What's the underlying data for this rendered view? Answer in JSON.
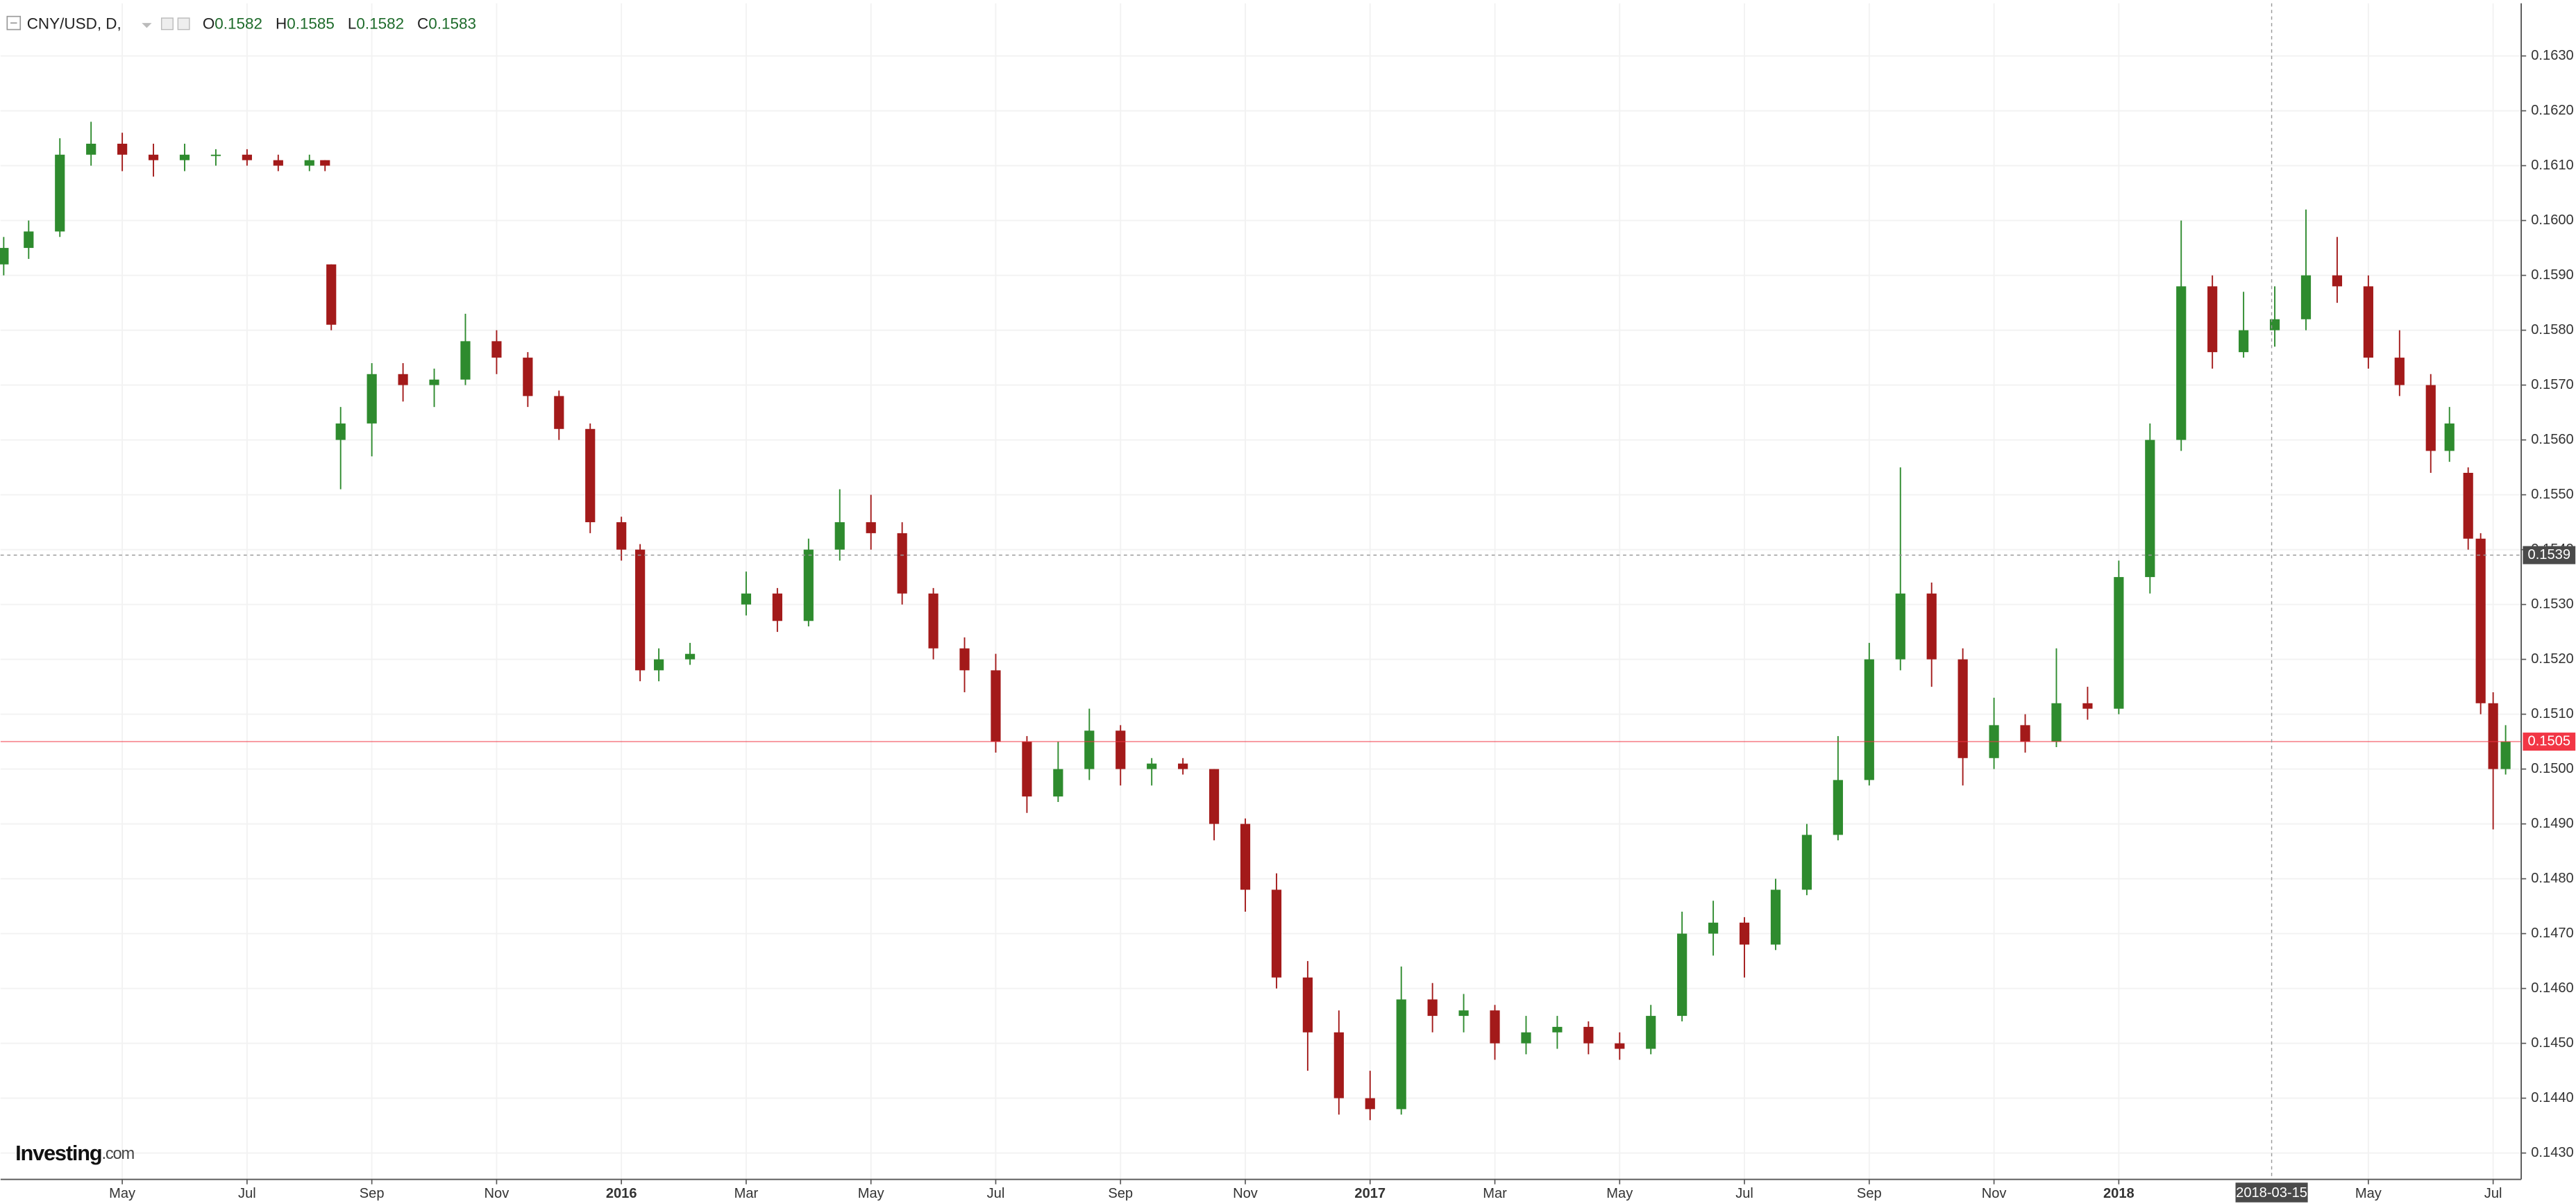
{
  "chart_data": {
    "type": "candlestick",
    "title": "CNY/USD, D,",
    "ohlc_header": [
      {
        "key": "O",
        "value": 0.1582
      },
      {
        "key": "H",
        "value": 0.1585
      },
      {
        "key": "L",
        "value": 0.1582
      },
      {
        "key": "C",
        "value": 0.1583
      }
    ],
    "brand": "Investing",
    "brand_suffix": ".com",
    "up_color": "#2e8b2e",
    "down_color": "#a31a1a",
    "grid": true,
    "xlim": [
      2.05,
      42.45
    ],
    "ylim": [
      0.14252,
      0.16396
    ],
    "xticks": [
      {
        "value": 4,
        "label": "May"
      },
      {
        "value": 6,
        "label": "Jul"
      },
      {
        "value": 8,
        "label": "Sep"
      },
      {
        "value": 10,
        "label": "Nov"
      },
      {
        "value": 12,
        "label": "2016"
      },
      {
        "value": 14,
        "label": "Mar"
      },
      {
        "value": 16,
        "label": "May"
      },
      {
        "value": 18,
        "label": "Jul"
      },
      {
        "value": 20,
        "label": "Sep"
      },
      {
        "value": 22,
        "label": "Nov"
      },
      {
        "value": 24,
        "label": "2017"
      },
      {
        "value": 26,
        "label": "Mar"
      },
      {
        "value": 28,
        "label": "May"
      },
      {
        "value": 30,
        "label": "Jul"
      },
      {
        "value": 32,
        "label": "Sep"
      },
      {
        "value": 34,
        "label": "Nov"
      },
      {
        "value": 36,
        "label": "2018"
      },
      {
        "value": 40,
        "label": "May"
      },
      {
        "value": 42,
        "label": "Jul"
      }
    ],
    "yticks": [
      {
        "value": 0.143,
        "label": "0.1430"
      },
      {
        "value": 0.144,
        "label": "0.1440"
      },
      {
        "value": 0.145,
        "label": "0.1450"
      },
      {
        "value": 0.146,
        "label": "0.1460"
      },
      {
        "value": 0.147,
        "label": "0.1470"
      },
      {
        "value": 0.148,
        "label": "0.1480"
      },
      {
        "value": 0.149,
        "label": "0.1490"
      },
      {
        "value": 0.15,
        "label": "0.1500"
      },
      {
        "value": 0.151,
        "label": "0.1510"
      },
      {
        "value": 0.152,
        "label": "0.1520"
      },
      {
        "value": 0.153,
        "label": "0.1530"
      },
      {
        "value": 0.154,
        "label": "0.1540"
      },
      {
        "value": 0.155,
        "label": "0.1550"
      },
      {
        "value": 0.156,
        "label": "0.1560"
      },
      {
        "value": 0.157,
        "label": "0.1570"
      },
      {
        "value": 0.158,
        "label": "0.1580"
      },
      {
        "value": 0.159,
        "label": "0.1590"
      },
      {
        "value": 0.16,
        "label": "0.1600"
      },
      {
        "value": 0.161,
        "label": "0.1610"
      },
      {
        "value": 0.162,
        "label": "0.1620"
      },
      {
        "value": 0.163,
        "label": "0.1630"
      }
    ],
    "crosshair": {
      "x": {
        "value": 38.45,
        "label": "2018-03-15"
      },
      "y": 0.1539
    },
    "current_price": 0.1505,
    "current_price_color": "#f23645",
    "series": {
      "x": [
        2.1,
        2.5,
        3.0,
        3.5,
        4.0,
        4.5,
        5.0,
        5.5,
        6.0,
        6.5,
        7.0,
        7.25,
        7.35,
        7.5,
        8.0,
        8.5,
        9.0,
        9.5,
        10.0,
        10.5,
        11.0,
        11.5,
        12.0,
        12.3,
        12.6,
        13.1,
        14.0,
        14.5,
        15.0,
        15.5,
        16.0,
        16.5,
        17.0,
        17.5,
        18.0,
        18.5,
        19.0,
        19.5,
        20.0,
        20.5,
        21.0,
        21.5,
        22.0,
        22.5,
        23.0,
        23.5,
        24.0,
        24.5,
        25.0,
        25.5,
        26.0,
        26.5,
        27.0,
        27.5,
        28.0,
        28.5,
        29.0,
        29.5,
        30.0,
        30.5,
        31.0,
        31.5,
        32.0,
        32.5,
        33.0,
        33.5,
        34.0,
        34.5,
        35.0,
        35.5,
        36.0,
        36.5,
        37.0,
        37.5,
        38.0,
        38.5,
        39.0,
        39.5,
        40.0,
        40.5,
        41.0,
        41.3,
        41.6,
        41.8,
        42.0,
        42.2
      ],
      "open": [
        0.1592,
        0.1595,
        0.1598,
        0.1612,
        0.1614,
        0.1612,
        0.1611,
        0.1612,
        0.1612,
        0.1611,
        0.161,
        0.1611,
        0.1592,
        0.156,
        0.1563,
        0.1572,
        0.157,
        0.1571,
        0.1578,
        0.1575,
        0.1568,
        0.1562,
        0.1545,
        0.154,
        0.1518,
        0.152,
        0.153,
        0.1532,
        0.1527,
        0.154,
        0.1545,
        0.1543,
        0.1532,
        0.1522,
        0.1518,
        0.1505,
        0.1495,
        0.15,
        0.1507,
        0.15,
        0.1501,
        0.15,
        0.149,
        0.1478,
        0.1462,
        0.1452,
        0.144,
        0.1438,
        0.1458,
        0.1455,
        0.1456,
        0.145,
        0.1452,
        0.1453,
        0.145,
        0.1449,
        0.1455,
        0.147,
        0.1472,
        0.1468,
        0.1478,
        0.1488,
        0.1498,
        0.152,
        0.1532,
        0.152,
        0.1502,
        0.1508,
        0.1505,
        0.1512,
        0.1511,
        0.1535,
        0.156,
        0.1588,
        0.1576,
        0.158,
        0.1582,
        0.159,
        0.1588,
        0.1575,
        0.157,
        0.1558,
        0.1554,
        0.1542,
        0.1512,
        0.15
      ],
      "high": [
        0.1597,
        0.16,
        0.1615,
        0.1618,
        0.1616,
        0.1614,
        0.1614,
        0.1613,
        0.1613,
        0.1612,
        0.1612,
        0.1611,
        0.1592,
        0.1566,
        0.1574,
        0.1574,
        0.1573,
        0.1583,
        0.158,
        0.1576,
        0.1569,
        0.1563,
        0.1546,
        0.1541,
        0.1522,
        0.1523,
        0.1536,
        0.1533,
        0.1542,
        0.1551,
        0.155,
        0.1545,
        0.1533,
        0.1524,
        0.1521,
        0.1506,
        0.1505,
        0.1511,
        0.1508,
        0.1502,
        0.1502,
        0.15,
        0.1491,
        0.1481,
        0.1465,
        0.1456,
        0.1445,
        0.1464,
        0.1461,
        0.1459,
        0.1457,
        0.1455,
        0.1455,
        0.1454,
        0.1452,
        0.1457,
        0.1474,
        0.1476,
        0.1473,
        0.148,
        0.149,
        0.1506,
        0.1523,
        0.1555,
        0.1534,
        0.1522,
        0.1513,
        0.151,
        0.1522,
        0.1515,
        0.1538,
        0.1563,
        0.16,
        0.159,
        0.1587,
        0.1588,
        0.1602,
        0.1597,
        0.159,
        0.158,
        0.1572,
        0.1566,
        0.1555,
        0.1543,
        0.1514,
        0.1508
      ],
      "low": [
        0.159,
        0.1593,
        0.1597,
        0.161,
        0.1609,
        0.1608,
        0.1609,
        0.161,
        0.161,
        0.1609,
        0.1609,
        0.1609,
        0.158,
        0.1551,
        0.1557,
        0.1567,
        0.1566,
        0.157,
        0.1572,
        0.1566,
        0.156,
        0.1543,
        0.1538,
        0.1516,
        0.1516,
        0.1519,
        0.1528,
        0.1525,
        0.1526,
        0.1538,
        0.154,
        0.153,
        0.152,
        0.1514,
        0.1503,
        0.1492,
        0.1494,
        0.1498,
        0.1497,
        0.1497,
        0.1499,
        0.1487,
        0.1474,
        0.146,
        0.1445,
        0.1437,
        0.1436,
        0.1437,
        0.1452,
        0.1452,
        0.1447,
        0.1448,
        0.1449,
        0.1448,
        0.1447,
        0.1448,
        0.1454,
        0.1466,
        0.1462,
        0.1467,
        0.1477,
        0.1487,
        0.1497,
        0.1518,
        0.1515,
        0.1497,
        0.15,
        0.1503,
        0.1504,
        0.1509,
        0.151,
        0.1532,
        0.1558,
        0.1573,
        0.1575,
        0.1577,
        0.158,
        0.1585,
        0.1573,
        0.1568,
        0.1554,
        0.1556,
        0.154,
        0.151,
        0.1489,
        0.1499
      ],
      "close": [
        0.1595,
        0.1598,
        0.1612,
        0.1614,
        0.1612,
        0.1611,
        0.1612,
        0.1612,
        0.1611,
        0.161,
        0.1611,
        0.161,
        0.1581,
        0.1563,
        0.1572,
        0.157,
        0.1571,
        0.1578,
        0.1575,
        0.1568,
        0.1562,
        0.1545,
        0.154,
        0.1518,
        0.152,
        0.1521,
        0.1532,
        0.1527,
        0.154,
        0.1545,
        0.1543,
        0.1532,
        0.1522,
        0.1518,
        0.1505,
        0.1495,
        0.15,
        0.1507,
        0.15,
        0.1501,
        0.15,
        0.149,
        0.1478,
        0.1462,
        0.1452,
        0.144,
        0.1438,
        0.1458,
        0.1455,
        0.1456,
        0.145,
        0.1452,
        0.1453,
        0.145,
        0.1449,
        0.1455,
        0.147,
        0.1472,
        0.1468,
        0.1478,
        0.1488,
        0.1498,
        0.152,
        0.1532,
        0.152,
        0.1502,
        0.1508,
        0.1505,
        0.1512,
        0.1511,
        0.1535,
        0.156,
        0.1588,
        0.1576,
        0.158,
        0.1582,
        0.159,
        0.1588,
        0.1575,
        0.157,
        0.1558,
        0.1563,
        0.1542,
        0.1512,
        0.15,
        0.1505
      ]
    }
  }
}
